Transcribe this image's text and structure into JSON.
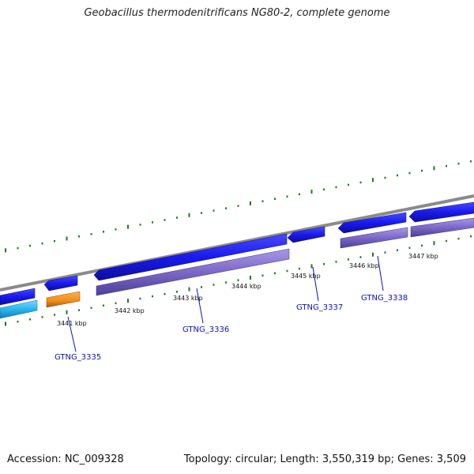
{
  "title": "Geobacillus thermodenitrificans NG80-2, complete genome",
  "footer": {
    "accession": "Accession: NC_009328",
    "summary": "Topology: circular; Length: 3,550,319 bp; Genes: 3,509"
  },
  "kbp_labels": [
    "3441 kbp",
    "3442 kbp",
    "3443 kbp",
    "3444 kbp",
    "3445 kbp",
    "3446 kbp",
    "3447 kbp"
  ],
  "genes": [
    {
      "name": "GTNG_3335"
    },
    {
      "name": "GTNG_3336"
    },
    {
      "name": "GTNG_3337"
    },
    {
      "name": "GTNG_3338"
    }
  ],
  "colors": {
    "backbone": "#8a8a8a",
    "gene_forward": "#1a1aee",
    "cds": "#7b68c8",
    "trna": "#29b6f0",
    "rrna": "#f08c1a",
    "gc_ticks": "#1f7a1f",
    "gene_label": "#1010c0"
  }
}
